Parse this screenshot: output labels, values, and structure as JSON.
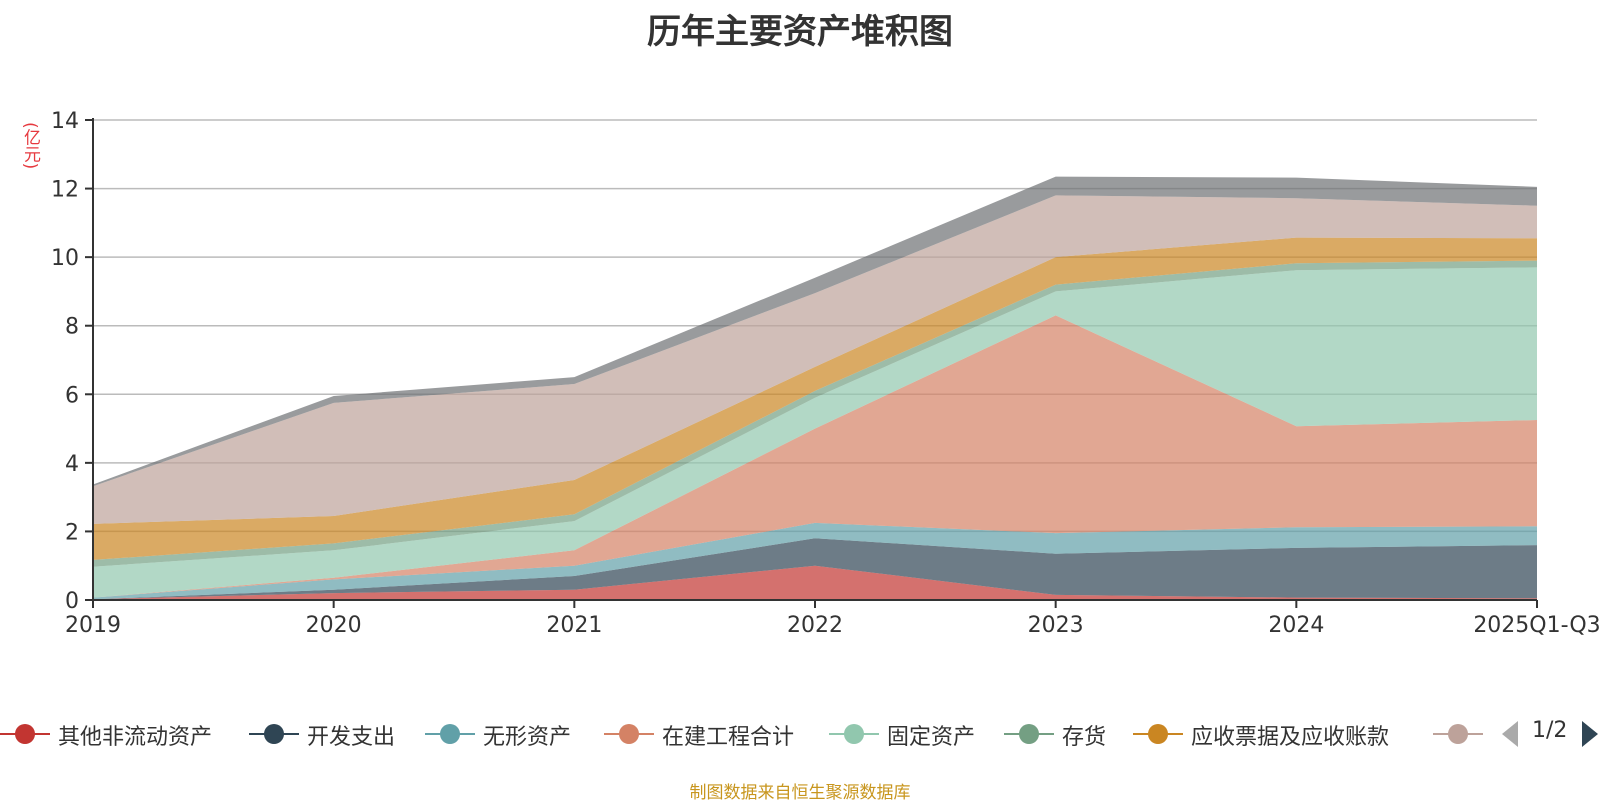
{
  "chart_data": {
    "type": "area",
    "stacked": true,
    "title": "历年主要资产堆积图",
    "ylabel": "(亿元)",
    "ylim": [
      0,
      14
    ],
    "yticks": [
      0,
      2,
      4,
      6,
      8,
      10,
      12,
      14
    ],
    "grid": true,
    "categories": [
      "2019",
      "2020",
      "2021",
      "2022",
      "2023",
      "2024",
      "2025Q1-Q3"
    ],
    "series": [
      {
        "name": "其他非流动资产",
        "color": "#c23531",
        "values": [
          0.02,
          0.2,
          0.3,
          1.0,
          0.15,
          0.07,
          0.05
        ]
      },
      {
        "name": "开发支出",
        "color": "#2f4554",
        "values": [
          0.0,
          0.1,
          0.4,
          0.8,
          1.2,
          1.45,
          1.55
        ]
      },
      {
        "name": "无形资产",
        "color": "#61a0a8",
        "values": [
          0.05,
          0.3,
          0.3,
          0.45,
          0.6,
          0.6,
          0.55
        ]
      },
      {
        "name": "在建工程合计",
        "color": "#d48265",
        "values": [
          0.0,
          0.05,
          0.45,
          2.75,
          6.35,
          2.95,
          3.1
        ]
      },
      {
        "name": "固定资产",
        "color": "#91c7ae",
        "values": [
          0.9,
          0.8,
          0.85,
          0.9,
          0.7,
          4.55,
          4.45
        ]
      },
      {
        "name": "存货",
        "color": "#749f83",
        "values": [
          0.2,
          0.2,
          0.2,
          0.2,
          0.2,
          0.2,
          0.2
        ]
      },
      {
        "name": "应收票据及应收账款",
        "color": "#ca8622",
        "values": [
          1.05,
          0.8,
          1.0,
          0.7,
          0.8,
          0.75,
          0.65
        ]
      },
      {
        "name": "",
        "color": "#bda29a",
        "values": [
          1.1,
          3.3,
          2.8,
          2.15,
          1.8,
          1.15,
          0.95
        ]
      },
      {
        "name": "",
        "color": "#6e7074",
        "values": [
          0.05,
          0.2,
          0.2,
          0.45,
          0.55,
          0.6,
          0.55
        ]
      }
    ]
  },
  "legend": {
    "pager_text": "1/2"
  },
  "source_note": "制图数据来自恒生聚源数据库"
}
